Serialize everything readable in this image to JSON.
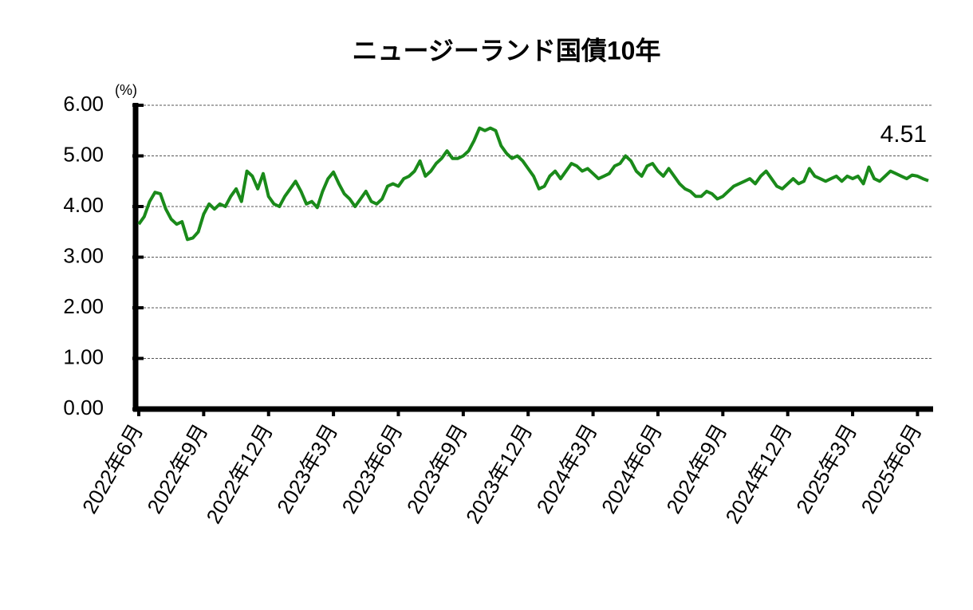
{
  "chart_data": {
    "type": "line",
    "title": "ニュージーランド国債10年",
    "unit_label": "(%)",
    "annotation": "4.51",
    "categories": [
      "2022年6月",
      null,
      null,
      null,
      null,
      null,
      null,
      null,
      null,
      null,
      null,
      null,
      "2022年9月",
      null,
      null,
      null,
      null,
      null,
      null,
      null,
      null,
      null,
      null,
      null,
      "2022年12月",
      null,
      null,
      null,
      null,
      null,
      null,
      null,
      null,
      null,
      null,
      null,
      "2023年3月",
      null,
      null,
      null,
      null,
      null,
      null,
      null,
      null,
      null,
      null,
      null,
      "2023年6月",
      null,
      null,
      null,
      null,
      null,
      null,
      null,
      null,
      null,
      null,
      null,
      "2023年9月",
      null,
      null,
      null,
      null,
      null,
      null,
      null,
      null,
      null,
      null,
      null,
      "2023年12月",
      null,
      null,
      null,
      null,
      null,
      null,
      null,
      null,
      null,
      null,
      null,
      "2024年3月",
      null,
      null,
      null,
      null,
      null,
      null,
      null,
      null,
      null,
      null,
      null,
      "2024年6月",
      null,
      null,
      null,
      null,
      null,
      null,
      null,
      null,
      null,
      null,
      null,
      "2024年9月",
      null,
      null,
      null,
      null,
      null,
      null,
      null,
      null,
      null,
      null,
      null,
      "2024年12月",
      null,
      null,
      null,
      null,
      null,
      null,
      null,
      null,
      null,
      null,
      null,
      "2025年3月",
      null,
      null,
      null,
      null,
      null,
      null,
      null,
      null,
      null,
      null,
      null,
      "2025年6月",
      null,
      null
    ],
    "values": [
      3.65,
      3.8,
      4.1,
      4.28,
      4.25,
      3.95,
      3.75,
      3.65,
      3.7,
      3.35,
      3.38,
      3.5,
      3.85,
      4.05,
      3.95,
      4.05,
      4.0,
      4.2,
      4.35,
      4.1,
      4.7,
      4.6,
      4.35,
      4.65,
      4.2,
      4.05,
      4.0,
      4.2,
      4.35,
      4.5,
      4.3,
      4.05,
      4.1,
      3.98,
      4.3,
      4.55,
      4.68,
      4.45,
      4.25,
      4.15,
      4.0,
      4.15,
      4.3,
      4.1,
      4.05,
      4.15,
      4.4,
      4.45,
      4.4,
      4.55,
      4.6,
      4.7,
      4.9,
      4.6,
      4.7,
      4.85,
      4.95,
      5.1,
      4.95,
      4.95,
      5.0,
      5.1,
      5.3,
      5.55,
      5.5,
      5.55,
      5.5,
      5.2,
      5.05,
      4.95,
      5.0,
      4.9,
      4.75,
      4.6,
      4.35,
      4.4,
      4.6,
      4.7,
      4.55,
      4.7,
      4.85,
      4.8,
      4.7,
      4.75,
      4.65,
      4.55,
      4.6,
      4.65,
      4.8,
      4.85,
      5.0,
      4.9,
      4.7,
      4.6,
      4.8,
      4.85,
      4.7,
      4.6,
      4.75,
      4.6,
      4.45,
      4.35,
      4.3,
      4.2,
      4.2,
      4.3,
      4.25,
      4.15,
      4.2,
      4.3,
      4.4,
      4.45,
      4.5,
      4.55,
      4.45,
      4.6,
      4.7,
      4.55,
      4.4,
      4.35,
      4.45,
      4.55,
      4.45,
      4.5,
      4.75,
      4.6,
      4.55,
      4.5,
      4.55,
      4.6,
      4.5,
      4.6,
      4.55,
      4.6,
      4.45,
      4.78,
      4.55,
      4.5,
      4.6,
      4.7,
      4.65,
      4.6,
      4.55,
      4.62,
      4.6,
      4.55,
      4.51
    ],
    "color": "#1a8a1a",
    "ylim": [
      0,
      6
    ],
    "yticks": [
      {
        "value": 0,
        "label": "0.00"
      },
      {
        "value": 1,
        "label": "1.00"
      },
      {
        "value": 2,
        "label": "2.00"
      },
      {
        "value": 3,
        "label": "3.00"
      },
      {
        "value": 4,
        "label": "4.00"
      },
      {
        "value": 5,
        "label": "5.00"
      },
      {
        "value": 6,
        "label": "6.00"
      }
    ],
    "grid": true
  }
}
